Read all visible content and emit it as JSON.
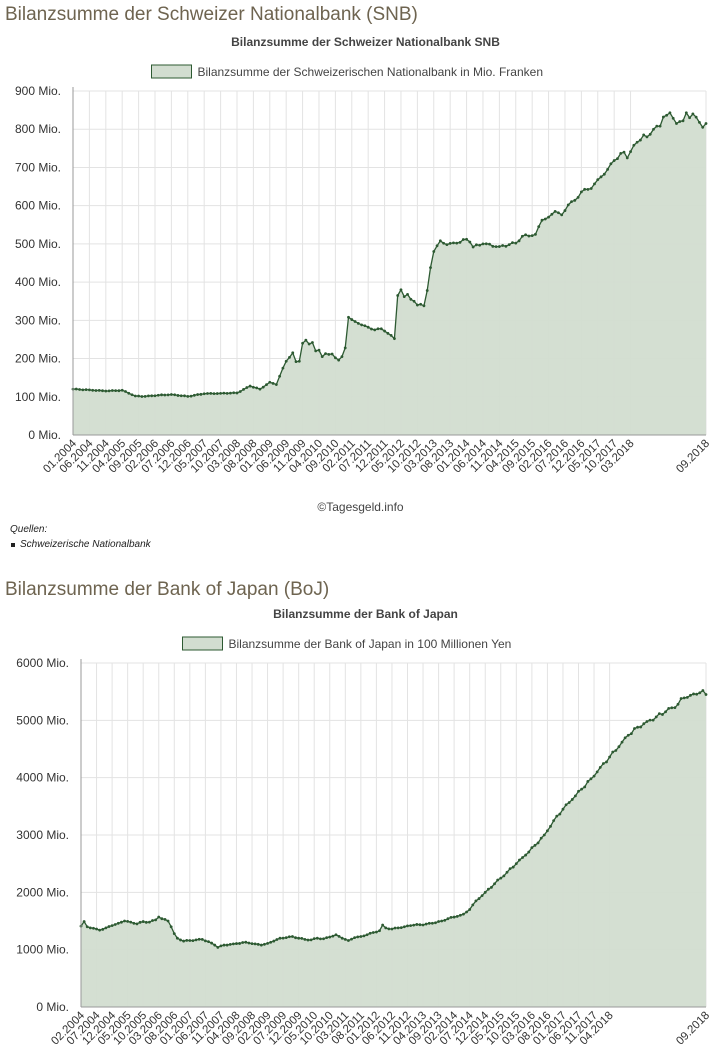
{
  "sections": {
    "snb_heading": "Bilanzsumme der Schweizer Nationalbank (SNB)",
    "boj_heading": "Bilanzsumme der Bank of Japan (BoJ)"
  },
  "credit": "©Tagesgeld.info",
  "sources": {
    "label": "Quellen:",
    "items": [
      "Schweizerische Nationalbank"
    ]
  },
  "colors": {
    "line": "#2d5a32",
    "fill": "#d2ddd0",
    "grid": "#e3e3e3",
    "axis": "#999999"
  },
  "chart_data": [
    {
      "type": "area",
      "title": "Bilanzsumme der Schweizer Nationalbank SNB",
      "legend": "Bilanzsumme der Schweizerischen Nationalbank in Mio. Franken",
      "legend_position": "top-center",
      "ylim": [
        0,
        900
      ],
      "yticks": [
        0,
        100,
        200,
        300,
        400,
        500,
        600,
        700,
        800,
        900
      ],
      "ytick_labels": [
        "0 Mio.",
        "100 Mio.",
        "200 Mio.",
        "300 Mio.",
        "400 Mio.",
        "500 Mio.",
        "600 Mio.",
        "700 Mio.",
        "800 Mio.",
        "900 Mio."
      ],
      "xtick_labels": [
        "01.2004",
        "06.2004",
        "11.2004",
        "04.2005",
        "09.2005",
        "02.2006",
        "07.2006",
        "12.2006",
        "05.2007",
        "10.2007",
        "03.2008",
        "08.2008",
        "01.2009",
        "06.2009",
        "11.2009",
        "04.2010",
        "09.2010",
        "02.2011",
        "07.2011",
        "12.2011",
        "05.2012",
        "10.2012",
        "03.2013",
        "08.2013",
        "01.2014",
        "06.2014",
        "11.2014",
        "04.2015",
        "09.2015",
        "02.2016",
        "07.2016",
        "12.2016",
        "05.2017",
        "10.2017",
        "03.2018",
        "09.2018"
      ],
      "points_per_tick": 5,
      "anchors": [
        [
          0,
          120
        ],
        [
          5,
          118
        ],
        [
          10,
          115
        ],
        [
          15,
          117
        ],
        [
          19,
          102
        ],
        [
          22,
          101
        ],
        [
          26,
          104
        ],
        [
          30,
          106
        ],
        [
          35,
          101
        ],
        [
          40,
          108
        ],
        [
          45,
          109
        ],
        [
          50,
          110
        ],
        [
          54,
          128
        ],
        [
          57,
          120
        ],
        [
          60,
          138
        ],
        [
          62,
          132
        ],
        [
          64,
          175
        ],
        [
          65,
          193
        ],
        [
          67,
          215
        ],
        [
          68,
          192
        ],
        [
          69,
          193
        ],
        [
          70,
          240
        ],
        [
          71,
          248
        ],
        [
          72,
          238
        ],
        [
          73,
          242
        ],
        [
          74,
          220
        ],
        [
          75,
          222
        ],
        [
          76,
          205
        ],
        [
          77,
          213
        ],
        [
          78,
          211
        ],
        [
          79,
          212
        ],
        [
          80,
          202
        ],
        [
          81,
          196
        ],
        [
          82,
          205
        ],
        [
          83,
          228
        ],
        [
          84,
          308
        ],
        [
          85,
          302
        ],
        [
          86,
          297
        ],
        [
          88,
          288
        ],
        [
          90,
          282
        ],
        [
          92,
          275
        ],
        [
          94,
          278
        ],
        [
          95,
          272
        ],
        [
          96,
          266
        ],
        [
          98,
          252
        ],
        [
          99,
          365
        ],
        [
          100,
          380
        ],
        [
          101,
          362
        ],
        [
          102,
          368
        ],
        [
          103,
          355
        ],
        [
          104,
          350
        ],
        [
          105,
          340
        ],
        [
          106,
          342
        ],
        [
          107,
          338
        ],
        [
          108,
          378
        ],
        [
          109,
          438
        ],
        [
          110,
          480
        ],
        [
          111,
          495
        ],
        [
          112,
          508
        ],
        [
          114,
          498
        ],
        [
          117,
          502
        ],
        [
          120,
          512
        ],
        [
          121,
          505
        ],
        [
          122,
          492
        ],
        [
          125,
          500
        ],
        [
          130,
          493
        ],
        [
          135,
          502
        ],
        [
          137,
          520
        ],
        [
          141,
          525
        ],
        [
          143,
          562
        ],
        [
          145,
          570
        ],
        [
          147,
          585
        ],
        [
          149,
          576
        ],
        [
          151,
          602
        ],
        [
          153,
          614
        ],
        [
          155,
          636
        ],
        [
          158,
          645
        ],
        [
          160,
          668
        ],
        [
          163,
          695
        ],
        [
          165,
          718
        ],
        [
          168,
          740
        ],
        [
          169,
          725
        ],
        [
          171,
          758
        ],
        [
          174,
          785
        ],
        [
          175,
          780
        ],
        [
          177,
          800
        ],
        [
          179,
          808
        ],
        [
          180,
          832
        ],
        [
          182,
          843
        ],
        [
          184,
          815
        ],
        [
          186,
          822
        ],
        [
          187,
          843
        ],
        [
          188,
          830
        ],
        [
          189,
          840
        ],
        [
          191,
          818
        ],
        [
          192,
          805
        ],
        [
          193,
          815
        ]
      ]
    },
    {
      "type": "area",
      "title": "Bilanzsumme der Bank of Japan",
      "legend": "Bilanzsumme der Bank of Japan in 100 Millionen Yen",
      "legend_position": "top-center",
      "ylim": [
        0,
        6000
      ],
      "yticks": [
        0,
        1000,
        2000,
        3000,
        4000,
        5000,
        6000
      ],
      "ytick_labels": [
        "0 Mio.",
        "1000 Mio.",
        "2000 Mio.",
        "3000 Mio.",
        "4000 Mio.",
        "5000 Mio.",
        "6000 Mio."
      ],
      "xtick_labels": [
        "02.2004",
        "07.2004",
        "12.2004",
        "05.2005",
        "10.2005",
        "03.2006",
        "08.2006",
        "01.2007",
        "06.2007",
        "11.2007",
        "04.2008",
        "09.2008",
        "02.2009",
        "07.2009",
        "12.2009",
        "05.2010",
        "10.2010",
        "03.2011",
        "08.2011",
        "01.2012",
        "06.2012",
        "11.2012",
        "04.2013",
        "09.2013",
        "02.2014",
        "07.2014",
        "12.2014",
        "05.2015",
        "10.2015",
        "03.2016",
        "08.2016",
        "01.2017",
        "06.2017",
        "11.2017",
        "04.2018",
        "09.2018"
      ],
      "points_per_tick": 5,
      "anchors": [
        [
          0,
          1410
        ],
        [
          1,
          1490
        ],
        [
          2,
          1400
        ],
        [
          3,
          1380
        ],
        [
          5,
          1360
        ],
        [
          6,
          1340
        ],
        [
          8,
          1380
        ],
        [
          10,
          1420
        ],
        [
          12,
          1460
        ],
        [
          14,
          1500
        ],
        [
          16,
          1480
        ],
        [
          18,
          1450
        ],
        [
          20,
          1490
        ],
        [
          22,
          1480
        ],
        [
          24,
          1520
        ],
        [
          25,
          1570
        ],
        [
          26,
          1540
        ],
        [
          28,
          1500
        ],
        [
          29,
          1400
        ],
        [
          30,
          1280
        ],
        [
          31,
          1200
        ],
        [
          33,
          1150
        ],
        [
          35,
          1160
        ],
        [
          37,
          1170
        ],
        [
          39,
          1180
        ],
        [
          41,
          1140
        ],
        [
          43,
          1080
        ],
        [
          44,
          1040
        ],
        [
          46,
          1080
        ],
        [
          49,
          1100
        ],
        [
          53,
          1130
        ],
        [
          56,
          1100
        ],
        [
          58,
          1080
        ],
        [
          60,
          1110
        ],
        [
          62,
          1150
        ],
        [
          64,
          1200
        ],
        [
          66,
          1210
        ],
        [
          68,
          1230
        ],
        [
          70,
          1200
        ],
        [
          72,
          1180
        ],
        [
          74,
          1170
        ],
        [
          76,
          1200
        ],
        [
          78,
          1190
        ],
        [
          80,
          1220
        ],
        [
          82,
          1260
        ],
        [
          84,
          1200
        ],
        [
          86,
          1160
        ],
        [
          88,
          1210
        ],
        [
          90,
          1230
        ],
        [
          92,
          1260
        ],
        [
          94,
          1300
        ],
        [
          96,
          1330
        ],
        [
          97,
          1430
        ],
        [
          98,
          1380
        ],
        [
          100,
          1360
        ],
        [
          102,
          1380
        ],
        [
          104,
          1400
        ],
        [
          106,
          1420
        ],
        [
          108,
          1440
        ],
        [
          110,
          1430
        ],
        [
          112,
          1460
        ],
        [
          114,
          1470
        ],
        [
          116,
          1500
        ],
        [
          118,
          1540
        ],
        [
          121,
          1580
        ],
        [
          123,
          1620
        ],
        [
          125,
          1700
        ],
        [
          127,
          1850
        ],
        [
          130,
          2000
        ],
        [
          133,
          2150
        ],
        [
          137,
          2350
        ],
        [
          140,
          2500
        ],
        [
          143,
          2650
        ],
        [
          146,
          2820
        ],
        [
          149,
          3000
        ],
        [
          152,
          3250
        ],
        [
          155,
          3450
        ],
        [
          158,
          3620
        ],
        [
          161,
          3800
        ],
        [
          164,
          3980
        ],
        [
          167,
          4180
        ],
        [
          170,
          4360
        ],
        [
          173,
          4540
        ],
        [
          176,
          4740
        ],
        [
          179,
          4880
        ],
        [
          182,
          4980
        ],
        [
          185,
          5060
        ],
        [
          188,
          5150
        ],
        [
          190,
          5220
        ],
        [
          192,
          5280
        ],
        [
          193,
          5380
        ],
        [
          195,
          5400
        ],
        [
          197,
          5460
        ],
        [
          199,
          5480
        ],
        [
          200,
          5520
        ],
        [
          201,
          5450
        ]
      ]
    }
  ]
}
